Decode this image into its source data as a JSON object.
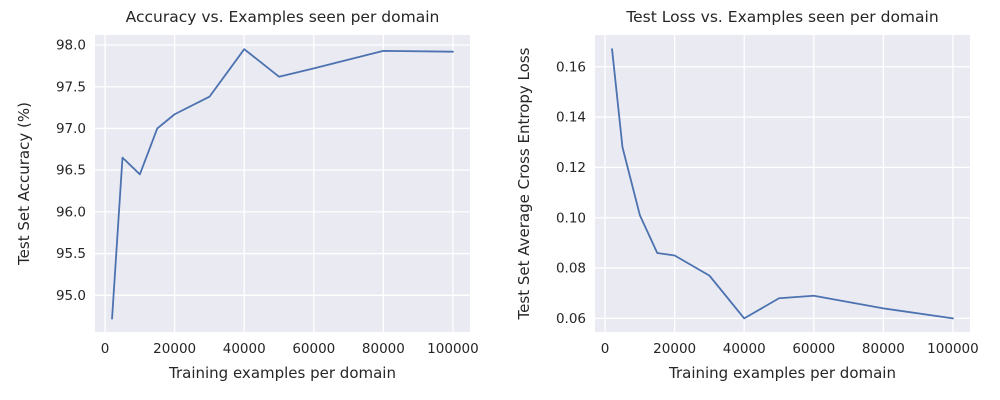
{
  "figure": {
    "background": "#ffffff"
  },
  "style": {
    "line_color": "#4c72b0",
    "axes_background": "#eaeaf2",
    "grid_color": "#ffffff",
    "text_color": "#262626",
    "line_width": 1.8,
    "grid_line_width": 1.3
  },
  "chart_data": [
    {
      "type": "line",
      "title": "Accuracy vs. Examples seen per domain",
      "xlabel": "Training examples per domain",
      "ylabel": "Test Set Accuracy (%)",
      "x": [
        2000,
        5000,
        10000,
        15000,
        20000,
        30000,
        40000,
        50000,
        60000,
        80000,
        100000
      ],
      "values": [
        94.72,
        96.65,
        96.45,
        97.0,
        97.17,
        97.38,
        97.95,
        97.62,
        97.72,
        97.93,
        97.92
      ],
      "xlim": [
        -2900,
        104900
      ],
      "ylim": [
        94.56,
        98.12
      ],
      "xticks": [
        0,
        20000,
        40000,
        60000,
        80000,
        100000
      ],
      "xtick_labels": [
        "0",
        "20000",
        "40000",
        "60000",
        "80000",
        "100000"
      ],
      "yticks": [
        95.0,
        95.5,
        96.0,
        96.5,
        97.0,
        97.5,
        98.0
      ],
      "ytick_labels": [
        "95.0",
        "95.5",
        "96.0",
        "96.5",
        "97.0",
        "97.5",
        "98.0"
      ],
      "grid": true,
      "legend": null
    },
    {
      "type": "line",
      "title": "Test Loss vs. Examples seen per domain",
      "xlabel": "Training examples per domain",
      "ylabel": "Test Set Average Cross Entropy Loss",
      "x": [
        2000,
        5000,
        10000,
        15000,
        20000,
        30000,
        40000,
        50000,
        60000,
        80000,
        100000
      ],
      "values": [
        0.167,
        0.128,
        0.101,
        0.086,
        0.085,
        0.077,
        0.06,
        0.068,
        0.069,
        0.064,
        0.06
      ],
      "xlim": [
        -2900,
        104900
      ],
      "ylim": [
        0.0546,
        0.1726
      ],
      "xticks": [
        0,
        20000,
        40000,
        60000,
        80000,
        100000
      ],
      "xtick_labels": [
        "0",
        "20000",
        "40000",
        "60000",
        "80000",
        "100000"
      ],
      "yticks": [
        0.06,
        0.08,
        0.1,
        0.12,
        0.14,
        0.16
      ],
      "ytick_labels": [
        "0.06",
        "0.08",
        "0.10",
        "0.12",
        "0.14",
        "0.16"
      ],
      "grid": true,
      "legend": null
    }
  ]
}
